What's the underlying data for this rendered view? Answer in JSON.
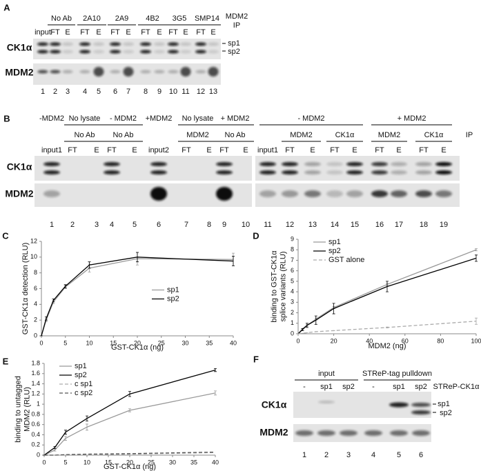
{
  "panel_a": {
    "label": "A",
    "groups": [
      "No Ab",
      "2A10",
      "2A9",
      "4B2",
      "3G5",
      "SMP14"
    ],
    "ip": [
      "MDM2",
      "IP"
    ],
    "lanes": [
      "input",
      "FT",
      "E",
      "FT",
      "E",
      "FT",
      "E",
      "FT",
      "E",
      "FT",
      "E",
      "FT",
      "E"
    ],
    "rows": [
      "CK1α",
      "MDM2"
    ],
    "bands": [
      "sp1",
      "sp2"
    ],
    "lane_numbers": [
      1,
      2,
      3,
      4,
      5,
      6,
      7,
      8,
      9,
      10,
      11,
      12,
      13
    ]
  },
  "panel_b": {
    "label": "B",
    "conditions": [
      "-MDM2",
      "No lysate",
      "- MDM2",
      "+MDM2",
      "No lysate",
      "+ MDM2",
      "- MDM2",
      "+ MDM2"
    ],
    "ip_groups": [
      "No Ab",
      "No Ab",
      "MDM2",
      "No Ab",
      "MDM2",
      "CK1α",
      "MDM2",
      "CK1α"
    ],
    "ip": "IP",
    "lanes": [
      "input1",
      "FT",
      "E",
      "FT",
      "E",
      "input2",
      "FT",
      "E",
      "FT",
      "E",
      "input1",
      "FT",
      "E",
      "FT",
      "E",
      "FT",
      "E",
      "FT",
      "E"
    ],
    "rows": [
      "CK1α",
      "MDM2"
    ],
    "lane_numbers": [
      1,
      2,
      3,
      4,
      5,
      6,
      7,
      8,
      9,
      10,
      11,
      12,
      13,
      14,
      15,
      16,
      17,
      18,
      19
    ]
  },
  "panel_f": {
    "label": "F",
    "groups": [
      "input",
      "STReP-tag pulldown"
    ],
    "lanes": [
      "-",
      "sp1",
      "sp2",
      "-",
      "sp1",
      "sp2"
    ],
    "construct": "STReP-CK1α",
    "rows": [
      "CK1α",
      "MDM2"
    ],
    "bands": [
      "sp1",
      "sp2"
    ],
    "lane_numbers": [
      1,
      2,
      3,
      4,
      5,
      6
    ]
  },
  "chart_data": [
    {
      "type": "line",
      "panel_label": "C",
      "y_label": [
        "GST-CK1α detection (RLU)"
      ],
      "x_label": "GST-CK1α (ng)",
      "x": [
        0,
        1,
        2.5,
        5,
        10,
        20,
        40
      ],
      "xlim": [
        0,
        40
      ],
      "xticks": [
        0,
        5,
        10,
        15,
        20,
        25,
        30,
        35,
        40
      ],
      "ylim": [
        0,
        12
      ],
      "yticks": [
        0,
        2,
        4,
        6,
        8,
        10,
        12
      ],
      "legend": "center right",
      "series": [
        {
          "name": "sp1",
          "color": "#999999",
          "dash": false,
          "values": [
            0,
            2,
            4.3,
            6.2,
            8.6,
            9.8,
            9.7
          ],
          "errors": [
            0,
            0.2,
            0.2,
            0.2,
            0.5,
            0.8,
            0.8
          ]
        },
        {
          "name": "sp2",
          "color": "#000000",
          "dash": false,
          "values": [
            0,
            2.2,
            4.5,
            6.3,
            9.0,
            10.0,
            9.5
          ],
          "errors": [
            0,
            0.2,
            0.2,
            0.2,
            0.4,
            0.6,
            0.6
          ]
        }
      ]
    },
    {
      "type": "line",
      "panel_label": "D",
      "y_label": [
        "binding to GST-CK1α",
        "splice variants (RLU)"
      ],
      "x_label": "MDM2 (ng)",
      "x": [
        0,
        2.5,
        5,
        10,
        20,
        50,
        100
      ],
      "xlim": [
        0,
        100
      ],
      "xticks": [
        0,
        20,
        40,
        60,
        80,
        100
      ],
      "ylim": [
        0,
        9
      ],
      "yticks": [
        0,
        1,
        2,
        3,
        4,
        5,
        6,
        7,
        8,
        9
      ],
      "legend": "upper left",
      "series": [
        {
          "name": "sp1",
          "color": "#999999",
          "dash": false,
          "values": [
            0,
            0.5,
            0.8,
            1.4,
            2.5,
            4.7,
            8.0
          ],
          "errors": [
            0,
            0,
            0.1,
            0.1,
            0.1,
            0.1,
            0.1
          ]
        },
        {
          "name": "sp2",
          "color": "#000000",
          "dash": false,
          "values": [
            0,
            0.4,
            0.8,
            1.3,
            2.4,
            4.5,
            7.2
          ],
          "errors": [
            0,
            0.1,
            0.2,
            0.4,
            0.5,
            0.5,
            0.3
          ]
        },
        {
          "name": "GST alone",
          "color": "#aaaaaa",
          "dash": true,
          "values": [
            0,
            0.05,
            0.1,
            0.2,
            0.3,
            0.6,
            1.2
          ],
          "errors": [
            0,
            0,
            0,
            0,
            0,
            0.05,
            0.3
          ]
        }
      ]
    },
    {
      "type": "line",
      "panel_label": "E",
      "y_label": [
        "binding to untagged",
        "MDM2 (RLU)"
      ],
      "x_label": "GST-CK1α (ng)",
      "x": [
        0,
        2.5,
        5,
        10,
        20,
        40
      ],
      "xlim": [
        0,
        40
      ],
      "xticks": [
        0,
        5,
        10,
        15,
        20,
        25,
        30,
        35,
        40
      ],
      "ylim": [
        0,
        1.8
      ],
      "yticks": [
        0,
        0.2,
        0.4,
        0.6,
        0.8,
        1,
        1.2,
        1.4,
        1.6,
        1.8
      ],
      "legend": "upper left",
      "series": [
        {
          "name": "sp1",
          "color": "#999999",
          "dash": false,
          "values": [
            0,
            0.1,
            0.33,
            0.55,
            0.88,
            1.22
          ],
          "errors": [
            0,
            0.02,
            0.04,
            0.06,
            0.03,
            0.04
          ]
        },
        {
          "name": "sp2",
          "color": "#000000",
          "dash": false,
          "values": [
            0,
            0.15,
            0.45,
            0.72,
            1.2,
            1.67
          ],
          "errors": [
            0,
            0.02,
            0.04,
            0.05,
            0.05,
            0.03
          ]
        },
        {
          "name": "c sp1",
          "color": "#aaaaaa",
          "dash": true,
          "values": [
            0,
            0,
            0.01,
            0.01,
            0.02,
            0.05
          ]
        },
        {
          "name": "c sp2",
          "color": "#555555",
          "dash": true,
          "values": [
            0,
            0,
            0.01,
            0.02,
            0.03,
            0.06
          ]
        }
      ]
    }
  ]
}
